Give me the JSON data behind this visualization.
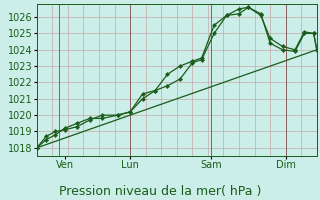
{
  "xlabel": "Pression niveau de la mer( hPa )",
  "bg_color": "#cceee8",
  "plot_bg_color": "#cceee8",
  "grid_color_h": "#c8a8a8",
  "grid_color_v": "#c8a8a8",
  "line_color": "#1a5c1a",
  "marker_color": "#1a5c1a",
  "ylim": [
    1017.5,
    1026.8
  ],
  "xlim_days": [
    0,
    9.0
  ],
  "xtick_labels": [
    "Ven",
    "Lun",
    "Sam",
    "Dim"
  ],
  "xtick_positions": [
    0.9,
    3.0,
    5.6,
    8.0
  ],
  "vline_positions": [
    0.7,
    3.0,
    5.6,
    8.0
  ],
  "series1_x": [
    0.0,
    0.3,
    0.6,
    0.9,
    1.3,
    1.7,
    2.1,
    2.6,
    3.0,
    3.4,
    3.8,
    4.2,
    4.6,
    5.0,
    5.3,
    5.7,
    6.1,
    6.5,
    6.8,
    7.2,
    7.5,
    7.9,
    8.3,
    8.6,
    8.9,
    9.0
  ],
  "series1_y": [
    1018.0,
    1018.7,
    1019.0,
    1019.1,
    1019.3,
    1019.7,
    1020.0,
    1020.0,
    1020.2,
    1021.3,
    1021.5,
    1022.5,
    1023.0,
    1023.3,
    1023.5,
    1025.5,
    1026.1,
    1026.5,
    1026.6,
    1026.1,
    1024.7,
    1024.2,
    1024.0,
    1025.1,
    1025.0,
    1024.0
  ],
  "series2_x": [
    0.0,
    0.3,
    0.6,
    0.9,
    1.3,
    1.7,
    2.1,
    2.6,
    3.0,
    3.4,
    3.8,
    4.2,
    4.6,
    5.0,
    5.3,
    5.7,
    6.1,
    6.5,
    6.8,
    7.2,
    7.5,
    7.9,
    8.3,
    8.6,
    8.9,
    9.0
  ],
  "series2_y": [
    1018.0,
    1018.5,
    1018.8,
    1019.2,
    1019.5,
    1019.8,
    1019.8,
    1020.0,
    1020.2,
    1021.0,
    1021.5,
    1021.8,
    1022.2,
    1023.2,
    1023.4,
    1025.0,
    1026.1,
    1026.2,
    1026.6,
    1026.2,
    1024.4,
    1024.0,
    1023.9,
    1025.0,
    1025.0,
    1024.0
  ],
  "series3_x": [
    0.0,
    9.0
  ],
  "series3_y": [
    1018.0,
    1024.0
  ],
  "ytick_values": [
    1018,
    1019,
    1020,
    1021,
    1022,
    1023,
    1024,
    1025,
    1026
  ],
  "fontsize_xlabel": 9,
  "fontsize_ticks": 7
}
